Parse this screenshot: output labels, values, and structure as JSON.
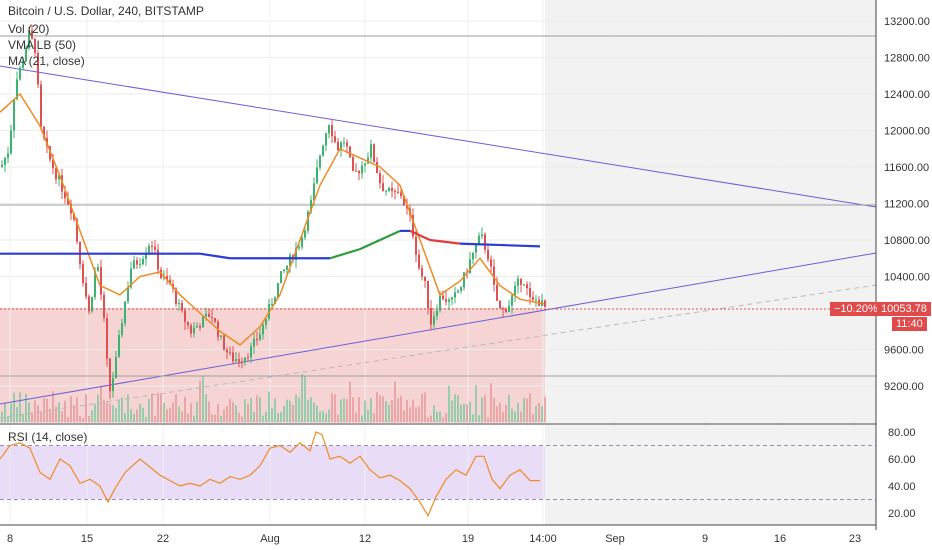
{
  "chart_data": {
    "type": "candlestick",
    "title": "Bitcoin / U.S. Dollar, 240, BITSTAMP",
    "indicators": [
      "Vol (20)",
      "VMA LB (50)",
      "MA (21, close)"
    ],
    "rsi_title": "RSI (14, close)",
    "price_axis": {
      "range": [
        8900,
        13350
      ],
      "ticks": [
        "13200.00",
        "12800.00",
        "12400.00",
        "12000.00",
        "11600.00",
        "11200.00",
        "10800.00",
        "10400.00",
        "9600.00",
        "9200.00"
      ]
    },
    "rsi_axis": {
      "range": [
        10,
        85
      ],
      "ticks": [
        "80.00",
        "60.00",
        "40.00",
        "20.00"
      ],
      "bands": [
        70,
        30
      ]
    },
    "x_axis": {
      "ticks": [
        "8",
        "15",
        "22",
        "Aug",
        "12",
        "19",
        "14:00",
        "Sep",
        "9",
        "16",
        "23"
      ]
    },
    "current": {
      "price": "10053.78",
      "change": "−10.20%",
      "countdown": "11:40"
    },
    "price_series": [
      [
        0,
        11600
      ],
      [
        8,
        11800
      ],
      [
        14,
        12500
      ],
      [
        20,
        12700
      ],
      [
        28,
        13050
      ],
      [
        34,
        12900
      ],
      [
        40,
        12000
      ],
      [
        48,
        11700
      ],
      [
        56,
        11500
      ],
      [
        64,
        11300
      ],
      [
        72,
        11100
      ],
      [
        80,
        10500
      ],
      [
        88,
        10000
      ],
      [
        96,
        10600
      ],
      [
        104,
        9800
      ],
      [
        108,
        9100
      ],
      [
        114,
        9400
      ],
      [
        122,
        10000
      ],
      [
        130,
        10500
      ],
      [
        140,
        10600
      ],
      [
        150,
        10800
      ],
      [
        160,
        10400
      ],
      [
        170,
        10300
      ],
      [
        180,
        10000
      ],
      [
        190,
        9800
      ],
      [
        200,
        9900
      ],
      [
        210,
        10000
      ],
      [
        220,
        9700
      ],
      [
        230,
        9500
      ],
      [
        240,
        9500
      ],
      [
        250,
        9600
      ],
      [
        260,
        9800
      ],
      [
        270,
        10100
      ],
      [
        280,
        10400
      ],
      [
        290,
        10600
      ],
      [
        300,
        10800
      ],
      [
        310,
        11200
      ],
      [
        320,
        11800
      ],
      [
        328,
        12100
      ],
      [
        336,
        11800
      ],
      [
        344,
        11900
      ],
      [
        352,
        11500
      ],
      [
        360,
        11600
      ],
      [
        370,
        11800
      ],
      [
        380,
        11400
      ],
      [
        390,
        11300
      ],
      [
        400,
        11300
      ],
      [
        410,
        11000
      ],
      [
        418,
        10500
      ],
      [
        424,
        10300
      ],
      [
        430,
        9900
      ],
      [
        440,
        10200
      ],
      [
        450,
        10100
      ],
      [
        460,
        10300
      ],
      [
        470,
        10600
      ],
      [
        480,
        10850
      ],
      [
        488,
        10600
      ],
      [
        494,
        10200
      ],
      [
        500,
        10000
      ],
      [
        508,
        10100
      ],
      [
        516,
        10300
      ],
      [
        522,
        10400
      ],
      [
        530,
        10100
      ],
      [
        536,
        10150
      ],
      [
        544,
        10053
      ]
    ],
    "ma_series": [
      [
        0,
        12200
      ],
      [
        20,
        12400
      ],
      [
        40,
        12050
      ],
      [
        60,
        11500
      ],
      [
        80,
        10900
      ],
      [
        100,
        10300
      ],
      [
        120,
        10200
      ],
      [
        140,
        10400
      ],
      [
        160,
        10450
      ],
      [
        180,
        10200
      ],
      [
        200,
        10000
      ],
      [
        220,
        9800
      ],
      [
        240,
        9650
      ],
      [
        260,
        9850
      ],
      [
        280,
        10200
      ],
      [
        300,
        10800
      ],
      [
        320,
        11400
      ],
      [
        340,
        11800
      ],
      [
        360,
        11700
      ],
      [
        380,
        11600
      ],
      [
        400,
        11400
      ],
      [
        420,
        10800
      ],
      [
        440,
        10200
      ],
      [
        460,
        10350
      ],
      [
        480,
        10600
      ],
      [
        500,
        10300
      ],
      [
        520,
        10150
      ],
      [
        544,
        10100
      ]
    ],
    "vma_series": [
      [
        0,
        10650
      ],
      [
        200,
        10650
      ],
      [
        230,
        10600
      ],
      [
        280,
        10600
      ],
      [
        330,
        10600
      ],
      [
        360,
        10700
      ],
      [
        380,
        10800
      ],
      [
        400,
        10900
      ],
      [
        410,
        10900
      ],
      [
        430,
        10800
      ],
      [
        460,
        10760
      ],
      [
        540,
        10730
      ]
    ],
    "rsi_series": [
      [
        0,
        60
      ],
      [
        10,
        70
      ],
      [
        20,
        72
      ],
      [
        30,
        68
      ],
      [
        40,
        50
      ],
      [
        50,
        45
      ],
      [
        60,
        60
      ],
      [
        70,
        55
      ],
      [
        80,
        42
      ],
      [
        90,
        45
      ],
      [
        100,
        40
      ],
      [
        108,
        28
      ],
      [
        115,
        38
      ],
      [
        125,
        50
      ],
      [
        140,
        60
      ],
      [
        150,
        54
      ],
      [
        160,
        48
      ],
      [
        170,
        44
      ],
      [
        180,
        40
      ],
      [
        190,
        42
      ],
      [
        200,
        40
      ],
      [
        210,
        45
      ],
      [
        220,
        42
      ],
      [
        230,
        47
      ],
      [
        240,
        45
      ],
      [
        250,
        48
      ],
      [
        260,
        55
      ],
      [
        270,
        68
      ],
      [
        280,
        70
      ],
      [
        290,
        65
      ],
      [
        300,
        72
      ],
      [
        310,
        66
      ],
      [
        316,
        80
      ],
      [
        322,
        78
      ],
      [
        330,
        60
      ],
      [
        340,
        62
      ],
      [
        350,
        57
      ],
      [
        360,
        62
      ],
      [
        370,
        52
      ],
      [
        380,
        46
      ],
      [
        390,
        48
      ],
      [
        400,
        44
      ],
      [
        410,
        38
      ],
      [
        420,
        28
      ],
      [
        428,
        18
      ],
      [
        436,
        32
      ],
      [
        446,
        45
      ],
      [
        456,
        52
      ],
      [
        466,
        48
      ],
      [
        476,
        62
      ],
      [
        484,
        62
      ],
      [
        492,
        45
      ],
      [
        500,
        38
      ],
      [
        510,
        48
      ],
      [
        520,
        52
      ],
      [
        530,
        44
      ],
      [
        540,
        44
      ]
    ]
  }
}
